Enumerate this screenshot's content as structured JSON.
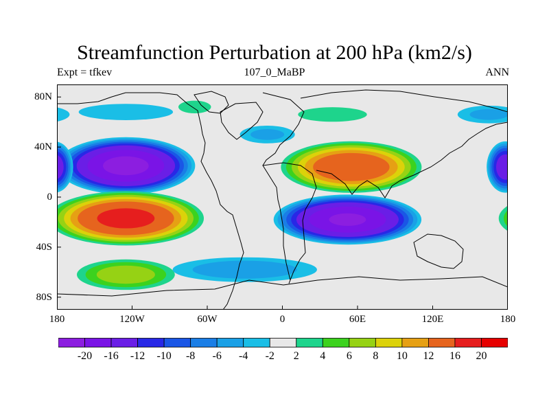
{
  "title": "Streamfunction Perturbation at 200 hPa (km2/s)",
  "subtitle_left": "Expt = tfkev",
  "subtitle_center": "107_0_MaBP",
  "subtitle_right": "ANN",
  "lat_ticks": [
    "80N",
    "40N",
    "0",
    "40S",
    "80S"
  ],
  "lon_ticks": [
    "180",
    "120W",
    "60W",
    "0",
    "60E",
    "120E",
    "180"
  ],
  "colorbar": {
    "labels": [
      "-20",
      "-16",
      "-12",
      "-10",
      "-8",
      "-6",
      "-4",
      "-2",
      "2",
      "4",
      "6",
      "8",
      "10",
      "12",
      "16",
      "20"
    ],
    "colors": [
      "#8c1ee0",
      "#7a14e6",
      "#6a1ee6",
      "#2828e6",
      "#1a56e6",
      "#1a7ee6",
      "#1aa0e6",
      "#1abee6",
      "#e8e8e8",
      "#1ed48c",
      "#3cd21e",
      "#96d214",
      "#dcd20a",
      "#e6a014",
      "#e6641e",
      "#e61e1e",
      "#e60000"
    ]
  },
  "map": {
    "background": "#e8e8e8",
    "lon_range": [
      -180,
      180
    ],
    "lat_range": [
      -90,
      90
    ],
    "anomalies": [
      {
        "name": "north-pacific-low",
        "lon": -125,
        "lat": 25,
        "rlon": 58,
        "rlat": 24,
        "value": -21
      },
      {
        "name": "south-pacific-high",
        "lon": -125,
        "lat": -17,
        "rlon": 66,
        "rlat": 23,
        "value": 17
      },
      {
        "name": "asia-high",
        "lon": 55,
        "lat": 24,
        "rlon": 60,
        "rlat": 22,
        "value": 15
      },
      {
        "name": "indian-ocean-low",
        "lon": 52,
        "lat": -18,
        "rlon": 62,
        "rlat": 21,
        "value": -20
      },
      {
        "name": "west-pacific-low",
        "lon": 178,
        "lat": 24,
        "rlon": 16,
        "rlat": 22,
        "value": -14
      },
      {
        "name": "south-pacific-band",
        "lon": -125,
        "lat": -62,
        "rlon": 45,
        "rlat": 14,
        "value": 7
      },
      {
        "name": "southern-ocean-low",
        "lon": -30,
        "lat": -58,
        "rlon": 70,
        "rlat": 12,
        "value": -5
      },
      {
        "name": "north-atlantic-band",
        "lon": -12,
        "lat": 50,
        "rlon": 28,
        "rlat": 9,
        "value": -4
      },
      {
        "name": "arctic-band-west",
        "lon": -125,
        "lat": 68,
        "rlon": 52,
        "rlat": 9,
        "value": -3
      },
      {
        "name": "arctic-green",
        "lon": -70,
        "lat": 72,
        "rlon": 18,
        "rlat": 7,
        "value": 3
      },
      {
        "name": "siberia-green",
        "lon": 40,
        "lat": 66,
        "rlon": 38,
        "rlat": 8,
        "value": 3
      },
      {
        "name": "arctic-band-east",
        "lon": 165,
        "lat": 66,
        "rlon": 32,
        "rlat": 9,
        "value": -4
      }
    ]
  }
}
